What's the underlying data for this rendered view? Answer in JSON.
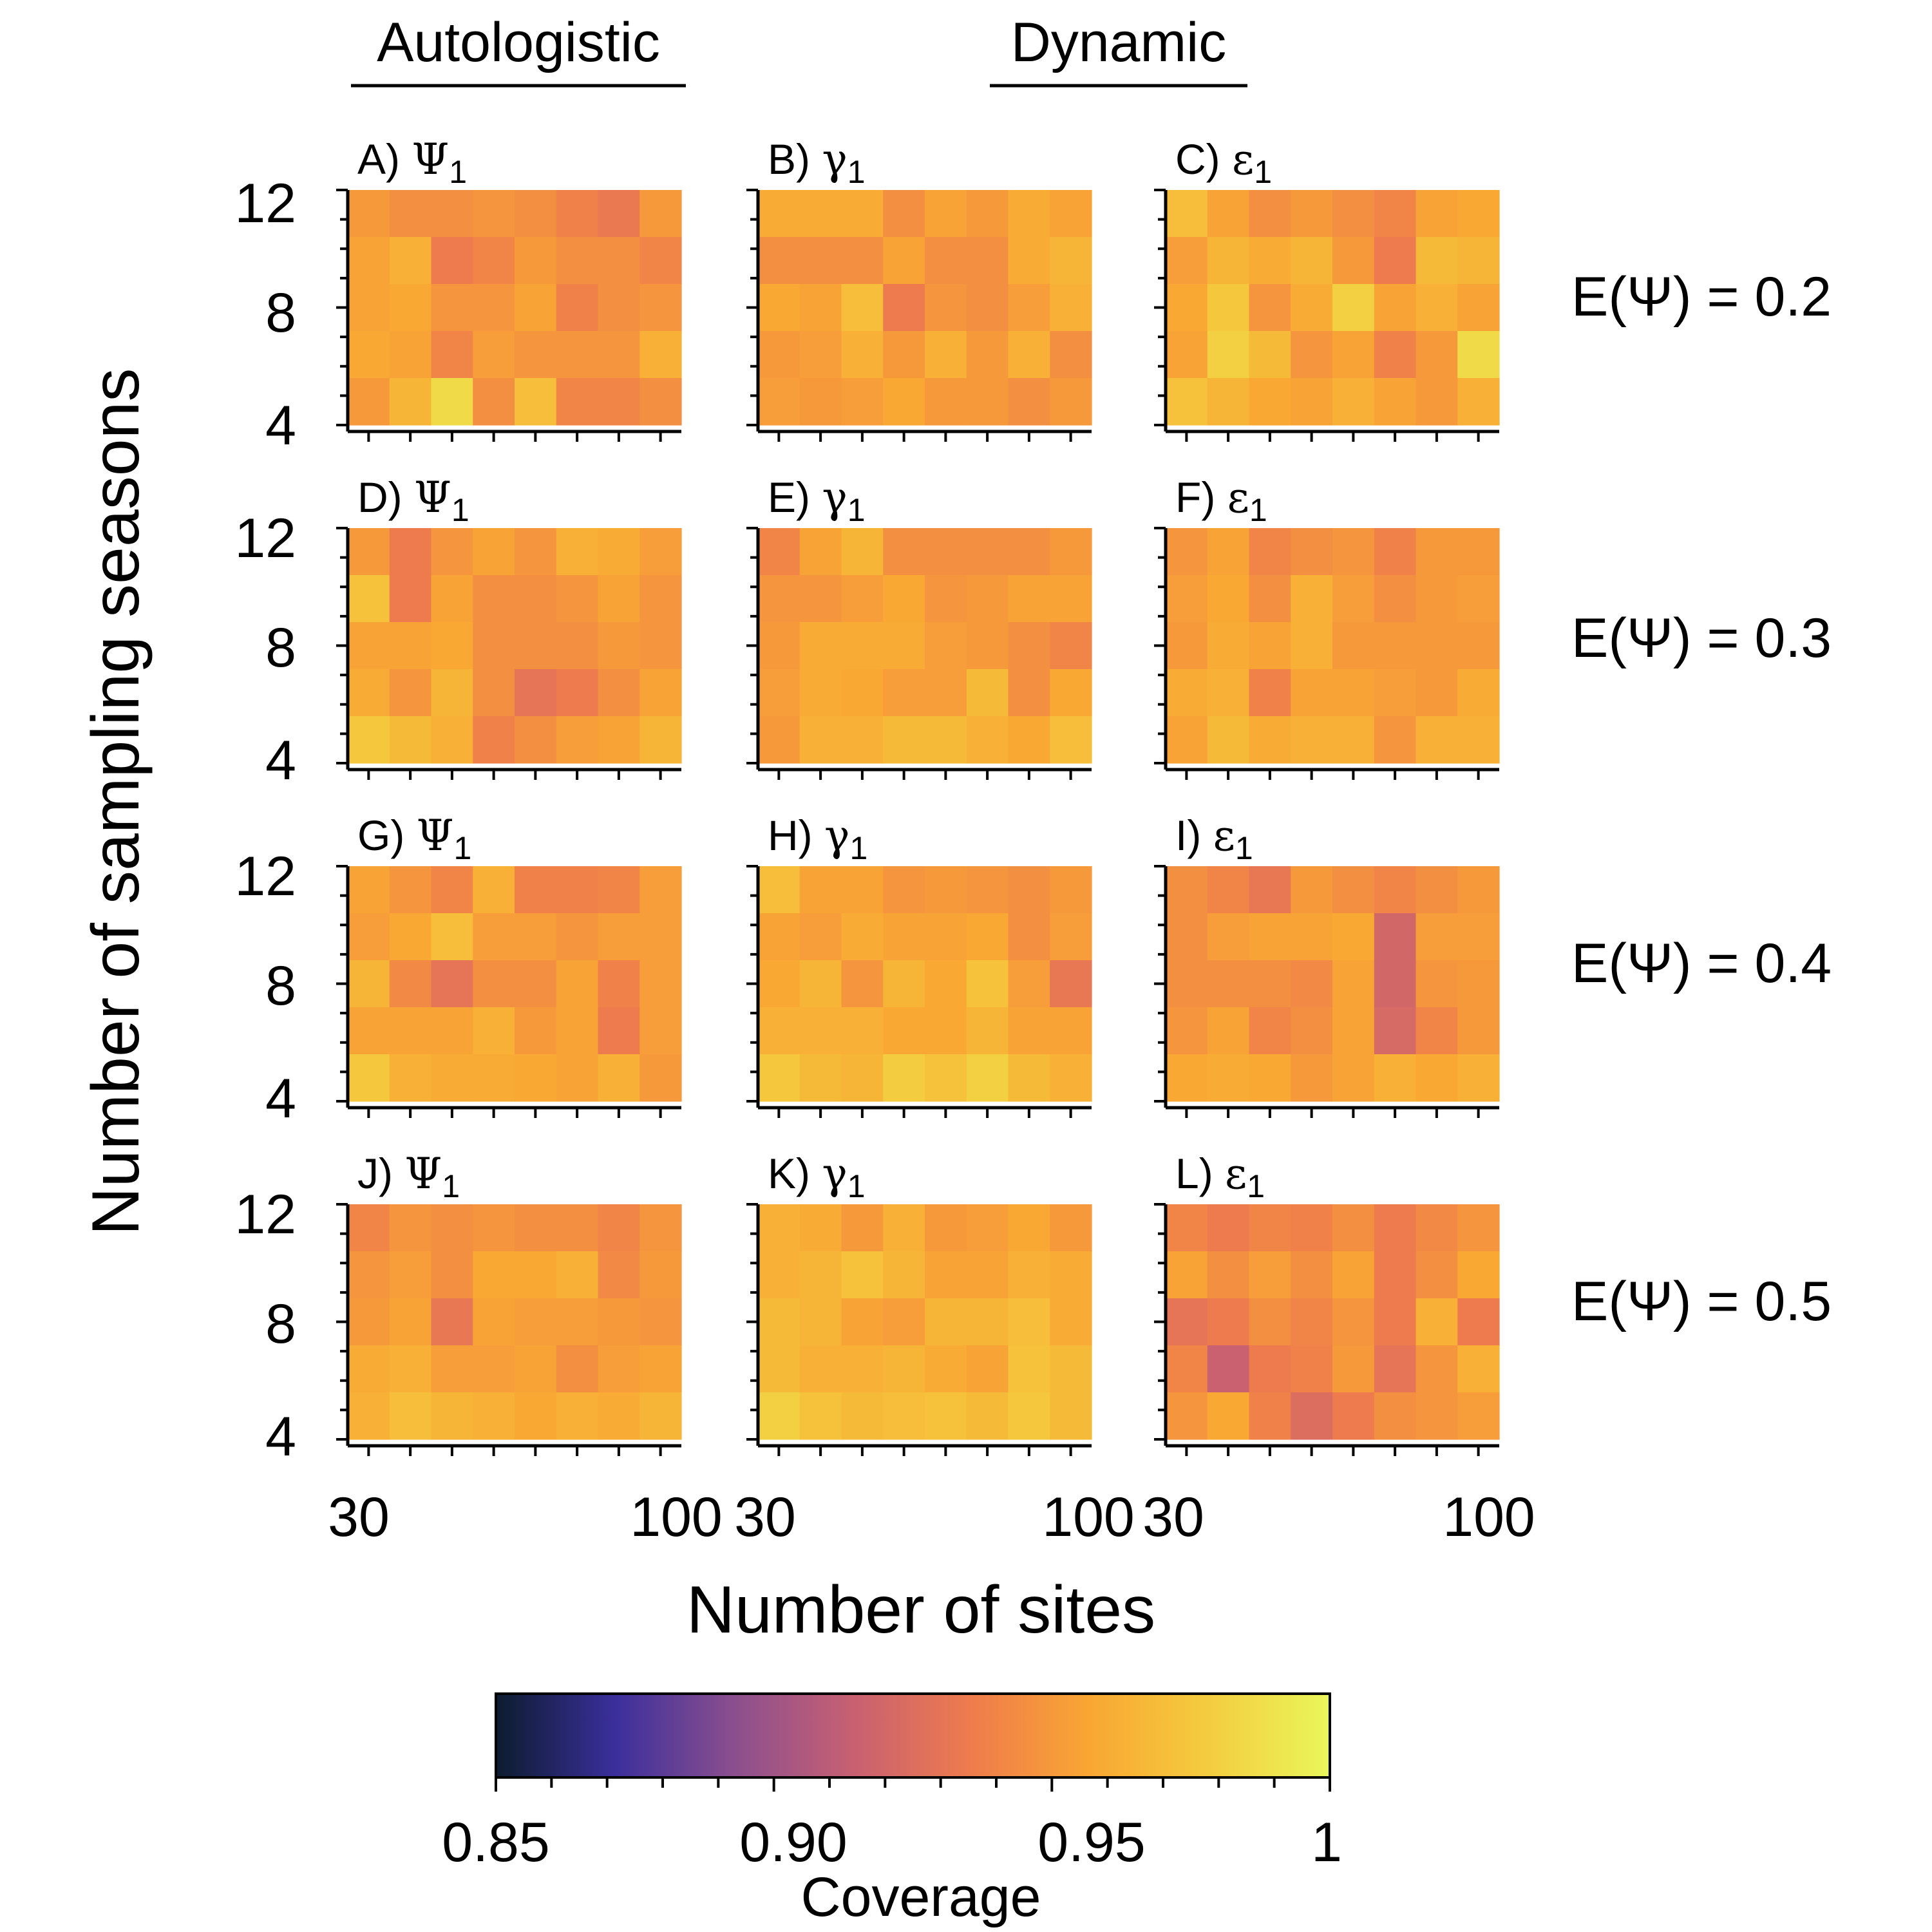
{
  "column_headers": [
    {
      "id": "autologistic",
      "label": "Autologistic"
    },
    {
      "id": "dynamic",
      "label": "Dynamic"
    }
  ],
  "row_labels": [
    "E(Ψ) = 0.2",
    "E(Ψ) = 0.3",
    "E(Ψ) = 0.4",
    "E(Ψ) = 0.5"
  ],
  "axes": {
    "ylabel": "Number of sampling seasons",
    "xlabel": "Number of sites",
    "y_ticks": [
      "12",
      "8",
      "4"
    ],
    "x_ticks": [
      "30",
      "100"
    ]
  },
  "colorbar": {
    "label": "Coverage",
    "ticks": [
      "0.85",
      "0.90",
      "0.95",
      "1"
    ],
    "range": [
      0.85,
      1.0
    ],
    "colors": [
      "#0c1c2e",
      "#3b2f9c",
      "#8b4f8e",
      "#c86072",
      "#ef7c4c",
      "#f9a733",
      "#f4cd3f",
      "#e9f75a"
    ]
  },
  "chart_data": {
    "type": "heatmap",
    "x_values": [
      30,
      40,
      50,
      60,
      70,
      80,
      90,
      100
    ],
    "y_values": [
      12,
      10,
      8,
      6,
      4
    ],
    "x_range": [
      30,
      100
    ],
    "y_range": [
      4,
      12
    ],
    "value_range": [
      0.85,
      1.0
    ],
    "colormap": "Coverage",
    "panels": [
      {
        "id": "A",
        "letter": "A)",
        "param": "Ψ",
        "sub": "1",
        "model": "Autologistic",
        "expected_psi": 0.2,
        "values": [
          [
            0.95,
            0.945,
            0.945,
            0.948,
            0.945,
            0.938,
            0.933,
            0.95
          ],
          [
            0.955,
            0.962,
            0.935,
            0.94,
            0.95,
            0.945,
            0.945,
            0.94
          ],
          [
            0.955,
            0.958,
            0.948,
            0.948,
            0.955,
            0.938,
            0.945,
            0.948
          ],
          [
            0.958,
            0.955,
            0.94,
            0.952,
            0.948,
            0.948,
            0.948,
            0.962
          ],
          [
            0.95,
            0.965,
            0.985,
            0.945,
            0.97,
            0.94,
            0.94,
            0.945
          ]
        ]
      },
      {
        "id": "B",
        "letter": "B)",
        "param": "γ",
        "sub": "1",
        "model": "Dynamic",
        "expected_psi": 0.2,
        "values": [
          [
            0.96,
            0.96,
            0.96,
            0.945,
            0.955,
            0.95,
            0.96,
            0.955
          ],
          [
            0.945,
            0.945,
            0.945,
            0.955,
            0.945,
            0.945,
            0.96,
            0.965
          ],
          [
            0.958,
            0.955,
            0.97,
            0.935,
            0.948,
            0.945,
            0.952,
            0.962
          ],
          [
            0.95,
            0.952,
            0.962,
            0.95,
            0.962,
            0.95,
            0.962,
            0.945
          ],
          [
            0.952,
            0.95,
            0.952,
            0.958,
            0.95,
            0.95,
            0.945,
            0.95
          ]
        ]
      },
      {
        "id": "C",
        "letter": "C)",
        "param": "ε",
        "sub": "1",
        "model": "Dynamic",
        "expected_psi": 0.2,
        "values": [
          [
            0.97,
            0.955,
            0.945,
            0.95,
            0.945,
            0.94,
            0.955,
            0.958
          ],
          [
            0.952,
            0.965,
            0.96,
            0.965,
            0.95,
            0.935,
            0.968,
            0.965
          ],
          [
            0.958,
            0.975,
            0.948,
            0.96,
            0.98,
            0.955,
            0.962,
            0.955
          ],
          [
            0.955,
            0.98,
            0.968,
            0.948,
            0.955,
            0.938,
            0.95,
            0.985
          ],
          [
            0.972,
            0.965,
            0.958,
            0.955,
            0.962,
            0.955,
            0.95,
            0.962
          ]
        ]
      },
      {
        "id": "D",
        "letter": "D)",
        "param": "Ψ",
        "sub": "1",
        "model": "Autologistic",
        "expected_psi": 0.3,
        "values": [
          [
            0.95,
            0.935,
            0.948,
            0.955,
            0.948,
            0.962,
            0.96,
            0.952
          ],
          [
            0.972,
            0.935,
            0.955,
            0.945,
            0.945,
            0.948,
            0.955,
            0.948
          ],
          [
            0.955,
            0.955,
            0.958,
            0.945,
            0.945,
            0.945,
            0.95,
            0.948
          ],
          [
            0.96,
            0.948,
            0.965,
            0.945,
            0.93,
            0.935,
            0.945,
            0.955
          ],
          [
            0.975,
            0.968,
            0.962,
            0.938,
            0.945,
            0.952,
            0.955,
            0.965
          ]
        ]
      },
      {
        "id": "E",
        "letter": "E)",
        "param": "γ",
        "sub": "1",
        "model": "Dynamic",
        "expected_psi": 0.3,
        "values": [
          [
            0.94,
            0.955,
            0.965,
            0.945,
            0.945,
            0.945,
            0.945,
            0.95
          ],
          [
            0.948,
            0.948,
            0.952,
            0.958,
            0.948,
            0.95,
            0.955,
            0.955
          ],
          [
            0.95,
            0.96,
            0.96,
            0.96,
            0.952,
            0.95,
            0.945,
            0.94
          ],
          [
            0.952,
            0.96,
            0.958,
            0.952,
            0.952,
            0.968,
            0.945,
            0.958
          ],
          [
            0.95,
            0.962,
            0.962,
            0.968,
            0.968,
            0.962,
            0.958,
            0.97
          ]
        ]
      },
      {
        "id": "F",
        "letter": "F)",
        "param": "ε",
        "sub": "1",
        "model": "Dynamic",
        "expected_psi": 0.3,
        "values": [
          [
            0.948,
            0.955,
            0.94,
            0.945,
            0.948,
            0.938,
            0.95,
            0.95
          ],
          [
            0.952,
            0.958,
            0.945,
            0.962,
            0.952,
            0.945,
            0.95,
            0.952
          ],
          [
            0.95,
            0.96,
            0.955,
            0.962,
            0.95,
            0.95,
            0.95,
            0.95
          ],
          [
            0.96,
            0.962,
            0.938,
            0.955,
            0.955,
            0.952,
            0.95,
            0.96
          ],
          [
            0.955,
            0.968,
            0.96,
            0.962,
            0.962,
            0.948,
            0.962,
            0.962
          ]
        ]
      },
      {
        "id": "G",
        "letter": "G)",
        "param": "Ψ",
        "sub": "1",
        "model": "Autologistic",
        "expected_psi": 0.4,
        "values": [
          [
            0.955,
            0.948,
            0.94,
            0.962,
            0.938,
            0.938,
            0.94,
            0.952
          ],
          [
            0.952,
            0.958,
            0.97,
            0.952,
            0.952,
            0.948,
            0.952,
            0.952
          ],
          [
            0.965,
            0.942,
            0.93,
            0.945,
            0.945,
            0.955,
            0.938,
            0.952
          ],
          [
            0.955,
            0.955,
            0.955,
            0.962,
            0.95,
            0.955,
            0.935,
            0.952
          ],
          [
            0.975,
            0.962,
            0.96,
            0.96,
            0.958,
            0.955,
            0.962,
            0.95
          ]
        ]
      },
      {
        "id": "H",
        "letter": "H)",
        "param": "γ",
        "sub": "1",
        "model": "Dynamic",
        "expected_psi": 0.4,
        "values": [
          [
            0.97,
            0.955,
            0.955,
            0.948,
            0.95,
            0.948,
            0.945,
            0.95
          ],
          [
            0.955,
            0.952,
            0.96,
            0.955,
            0.955,
            0.958,
            0.945,
            0.952
          ],
          [
            0.958,
            0.965,
            0.948,
            0.965,
            0.958,
            0.972,
            0.952,
            0.932
          ],
          [
            0.962,
            0.962,
            0.962,
            0.958,
            0.958,
            0.965,
            0.955,
            0.955
          ],
          [
            0.975,
            0.968,
            0.965,
            0.978,
            0.972,
            0.98,
            0.968,
            0.962
          ]
        ]
      },
      {
        "id": "I",
        "letter": "I)",
        "param": "ε",
        "sub": "1",
        "model": "Dynamic",
        "expected_psi": 0.4,
        "values": [
          [
            0.945,
            0.94,
            0.932,
            0.95,
            0.945,
            0.94,
            0.945,
            0.95
          ],
          [
            0.945,
            0.952,
            0.955,
            0.955,
            0.958,
            0.92,
            0.952,
            0.952
          ],
          [
            0.945,
            0.945,
            0.945,
            0.942,
            0.955,
            0.92,
            0.948,
            0.95
          ],
          [
            0.948,
            0.955,
            0.94,
            0.945,
            0.955,
            0.922,
            0.94,
            0.95
          ],
          [
            0.958,
            0.96,
            0.958,
            0.95,
            0.955,
            0.962,
            0.958,
            0.962
          ]
        ]
      },
      {
        "id": "J",
        "letter": "J)",
        "param": "Ψ",
        "sub": "1",
        "model": "Autologistic",
        "expected_psi": 0.5,
        "values": [
          [
            0.94,
            0.948,
            0.945,
            0.948,
            0.945,
            0.945,
            0.94,
            0.948
          ],
          [
            0.948,
            0.952,
            0.945,
            0.958,
            0.958,
            0.962,
            0.942,
            0.95
          ],
          [
            0.95,
            0.955,
            0.932,
            0.955,
            0.952,
            0.952,
            0.95,
            0.948
          ],
          [
            0.96,
            0.962,
            0.952,
            0.952,
            0.955,
            0.945,
            0.952,
            0.955
          ],
          [
            0.962,
            0.97,
            0.965,
            0.962,
            0.958,
            0.962,
            0.96,
            0.965
          ]
        ]
      },
      {
        "id": "K",
        "letter": "K)",
        "param": "γ",
        "sub": "1",
        "model": "Dynamic",
        "expected_psi": 0.5,
        "values": [
          [
            0.962,
            0.96,
            0.95,
            0.962,
            0.95,
            0.952,
            0.958,
            0.95
          ],
          [
            0.962,
            0.965,
            0.972,
            0.965,
            0.955,
            0.955,
            0.962,
            0.96
          ],
          [
            0.968,
            0.965,
            0.955,
            0.952,
            0.965,
            0.965,
            0.97,
            0.96
          ],
          [
            0.968,
            0.962,
            0.962,
            0.965,
            0.96,
            0.955,
            0.972,
            0.968
          ],
          [
            0.98,
            0.972,
            0.968,
            0.97,
            0.972,
            0.968,
            0.975,
            0.968
          ]
        ]
      },
      {
        "id": "L",
        "letter": "L)",
        "param": "ε",
        "sub": "1",
        "model": "Dynamic",
        "expected_psi": 0.5,
        "values": [
          [
            0.94,
            0.935,
            0.94,
            0.938,
            0.945,
            0.935,
            0.942,
            0.948
          ],
          [
            0.955,
            0.945,
            0.952,
            0.945,
            0.955,
            0.935,
            0.945,
            0.958
          ],
          [
            0.93,
            0.935,
            0.945,
            0.94,
            0.948,
            0.935,
            0.962,
            0.935
          ],
          [
            0.94,
            0.915,
            0.935,
            0.938,
            0.95,
            0.93,
            0.948,
            0.962
          ],
          [
            0.948,
            0.958,
            0.938,
            0.925,
            0.935,
            0.945,
            0.948,
            0.952
          ]
        ]
      }
    ]
  }
}
